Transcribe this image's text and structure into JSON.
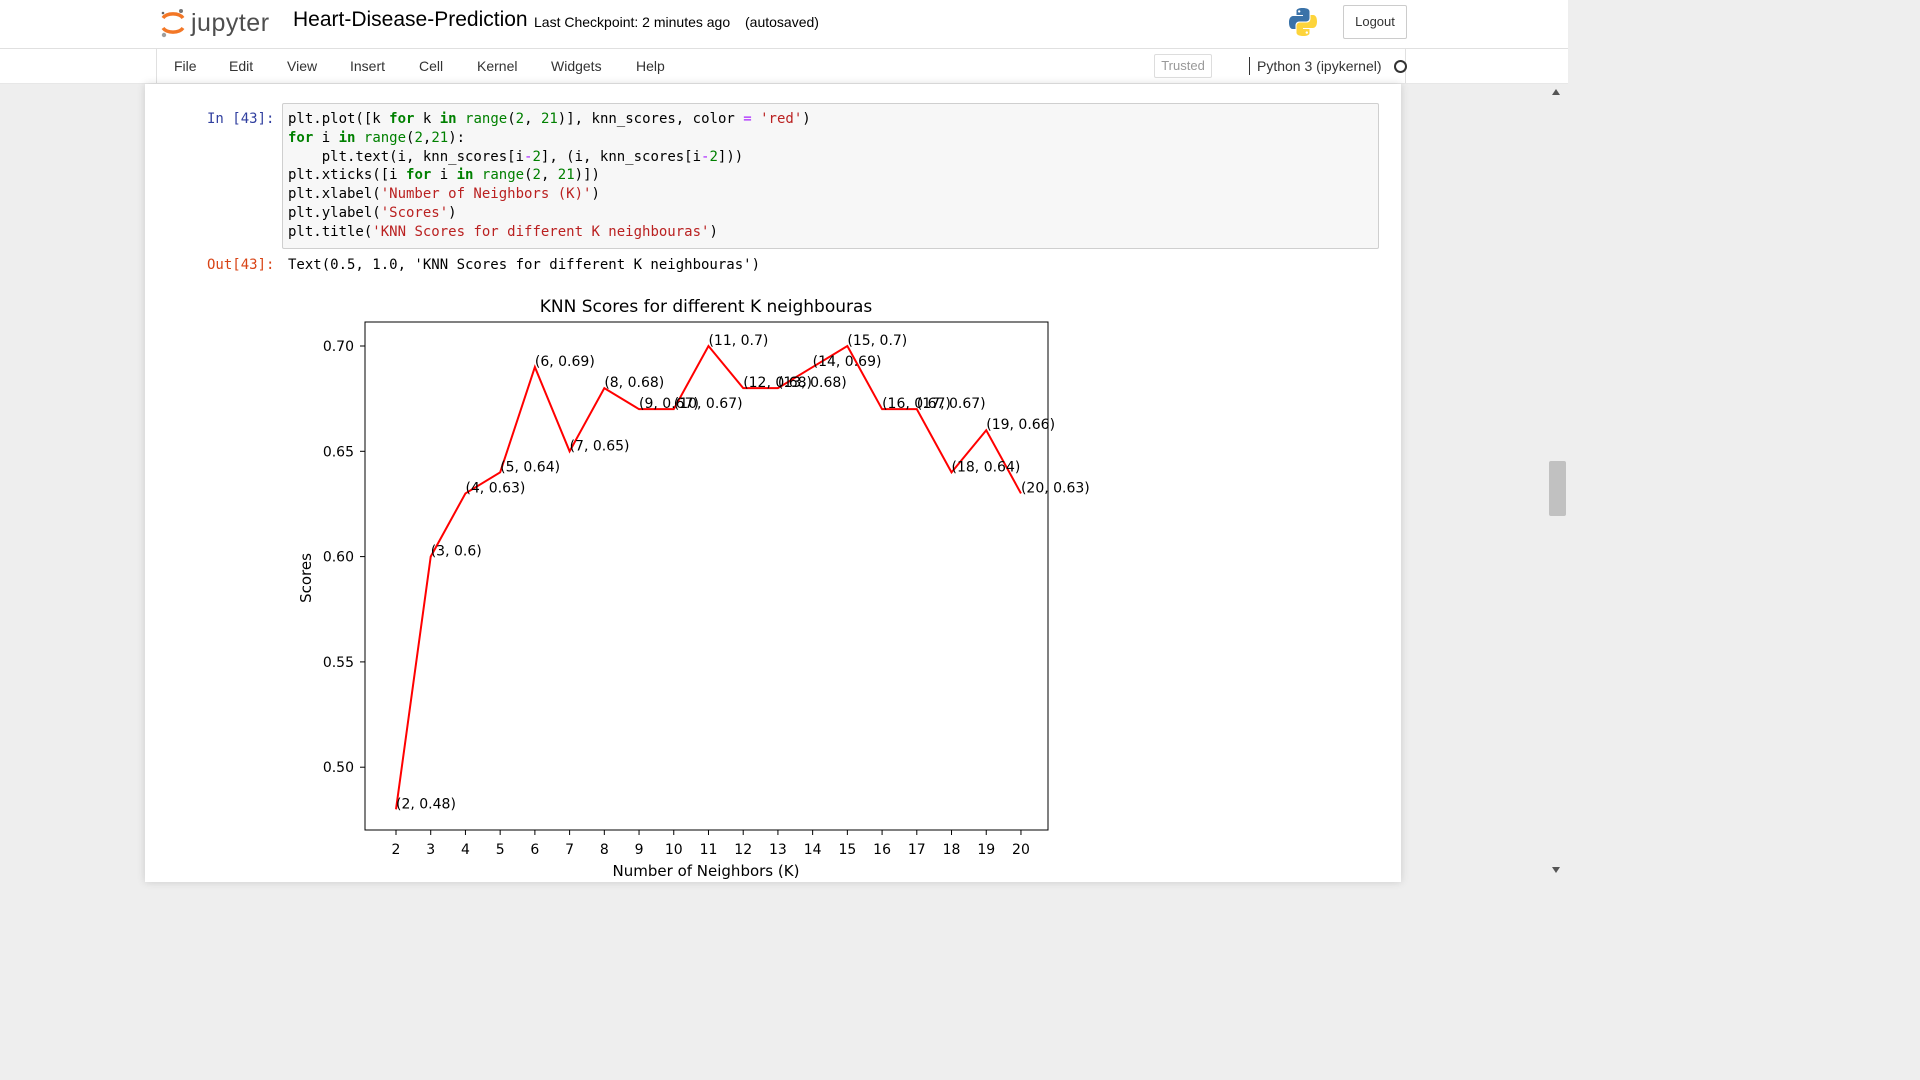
{
  "header": {
    "logo_text": "jupyter",
    "notebook_name": "Heart-Disease-Prediction",
    "checkpoint": "Last Checkpoint: 2 minutes ago",
    "autosave": "(autosaved)",
    "logout_label": "Logout"
  },
  "menu": {
    "items": [
      "File",
      "Edit",
      "View",
      "Insert",
      "Cell",
      "Kernel",
      "Widgets",
      "Help"
    ],
    "trusted_label": "Trusted",
    "kernel_label": "Python 3 (ipykernel)"
  },
  "cell": {
    "in_prompt": "In [43]:",
    "out_prompt": "Out[43]:",
    "output_text": "Text(0.5, 1.0, 'KNN Scores for different K neighbouras')"
  },
  "chart_data": {
    "type": "line",
    "title": "KNN Scores for different K neighbouras",
    "xlabel": "Number of Neighbors (K)",
    "ylabel": "Scores",
    "x": [
      2,
      3,
      4,
      5,
      6,
      7,
      8,
      9,
      10,
      11,
      12,
      13,
      14,
      15,
      16,
      17,
      18,
      19,
      20
    ],
    "y": [
      0.48,
      0.6,
      0.63,
      0.64,
      0.69,
      0.65,
      0.68,
      0.67,
      0.67,
      0.7,
      0.68,
      0.68,
      0.69,
      0.7,
      0.67,
      0.67,
      0.64,
      0.66,
      0.63
    ],
    "point_labels": [
      "(2, 0.48)",
      "(3, 0.6)",
      "(4, 0.63)",
      "(5, 0.64)",
      "(6, 0.69)",
      "(7, 0.65)",
      "(8, 0.68)",
      "(9, 0.67)",
      "(10, 0.67)",
      "(11, 0.7)",
      "(12, 0.68)",
      "(13, 0.68)",
      "(14, 0.69)",
      "(15, 0.7)",
      "(16, 0.67)",
      "(17, 0.67)",
      "(18, 0.64)",
      "(19, 0.66)",
      "(20, 0.63)"
    ],
    "xticks": [
      "2",
      "3",
      "4",
      "5",
      "6",
      "7",
      "8",
      "9",
      "10",
      "11",
      "12",
      "13",
      "14",
      "15",
      "16",
      "17",
      "18",
      "19",
      "20"
    ],
    "yticks": [
      "0.50",
      "0.55",
      "0.60",
      "0.65",
      "0.70"
    ],
    "ytick_values": [
      0.5,
      0.55,
      0.6,
      0.65,
      0.7
    ],
    "line_color": "#ff0000",
    "grid": false
  }
}
